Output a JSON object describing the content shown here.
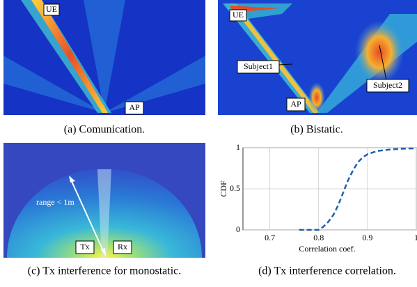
{
  "panels": [
    {
      "caption": "(a)  Comunication.",
      "labels": [
        "UE",
        "AP"
      ]
    },
    {
      "caption": "(b)  Bistatic.",
      "labels": [
        "UE",
        "Subject1",
        "Subject2",
        "AP"
      ]
    },
    {
      "caption": "(c)  Tx interference for monostatic.",
      "labels": [
        "range < 1m",
        "Tx",
        "Rx"
      ]
    },
    {
      "caption": "(d)  Tx interference correlation."
    }
  ],
  "chart_data": {
    "type": "line",
    "x_label": "Correlation coef.",
    "y_label": "CDF",
    "x": [
      0.76,
      0.8,
      0.81,
      0.82,
      0.83,
      0.84,
      0.85,
      0.86,
      0.87,
      0.88,
      0.89,
      0.9,
      0.92,
      0.95,
      0.98,
      1.0
    ],
    "values": [
      0,
      0,
      0.04,
      0.1,
      0.18,
      0.3,
      0.45,
      0.6,
      0.72,
      0.82,
      0.88,
      0.92,
      0.96,
      0.98,
      0.99,
      0.99
    ],
    "color": "#1f5fae",
    "line_style": "dashed",
    "xlim": [
      0.645,
      1.0
    ],
    "ylim": [
      0,
      1
    ],
    "xticks": [
      0.7,
      0.8,
      0.9,
      1
    ],
    "yticks": [
      0,
      0.5,
      1
    ],
    "grid": true
  }
}
